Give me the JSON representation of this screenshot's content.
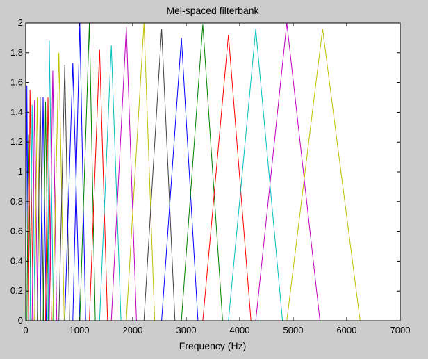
{
  "chart_data": {
    "type": "line",
    "title": "Mel-spaced filterbank",
    "xlabel": "Frequency (Hz)",
    "ylabel": "",
    "xlim": [
      0,
      7000
    ],
    "ylim": [
      0,
      2
    ],
    "xticks": [
      "0",
      "1000",
      "2000",
      "3000",
      "4000",
      "5000",
      "6000",
      "7000"
    ],
    "yticks": [
      "0",
      "0.2",
      "0.4",
      "0.6",
      "0.8",
      "1",
      "1.2",
      "1.4",
      "1.6",
      "1.8",
      "2"
    ],
    "grid": false,
    "legend": "none",
    "series": [
      {
        "color": "#0000ff",
        "points": [
          [
            0,
            0
          ],
          [
            22,
            1.58
          ],
          [
            50,
            0
          ]
        ]
      },
      {
        "color": "#008000",
        "points": [
          [
            22,
            0
          ],
          [
            50,
            1.25
          ],
          [
            100,
            0
          ]
        ]
      },
      {
        "color": "#ff0000",
        "points": [
          [
            50,
            0
          ],
          [
            80,
            1.55
          ],
          [
            140,
            0
          ]
        ]
      },
      {
        "color": "#00bfbf",
        "points": [
          [
            80,
            0
          ],
          [
            120,
            1.45
          ],
          [
            175,
            0
          ]
        ]
      },
      {
        "color": "#bf00bf",
        "points": [
          [
            120,
            0
          ],
          [
            165,
            1.48
          ],
          [
            225,
            0
          ]
        ]
      },
      {
        "color": "#bfbf00",
        "points": [
          [
            165,
            0
          ],
          [
            215,
            1.5
          ],
          [
            280,
            0
          ]
        ]
      },
      {
        "color": "#404040",
        "points": [
          [
            215,
            0
          ],
          [
            270,
            1.5
          ],
          [
            335,
            0
          ]
        ]
      },
      {
        "color": "#0000ff",
        "points": [
          [
            270,
            0
          ],
          [
            325,
            1.5
          ],
          [
            385,
            0
          ]
        ]
      },
      {
        "color": "#008000",
        "points": [
          [
            325,
            0
          ],
          [
            370,
            1.47
          ],
          [
            425,
            0
          ]
        ]
      },
      {
        "color": "#ff0000",
        "points": [
          [
            370,
            0
          ],
          [
            415,
            1.5
          ],
          [
            480,
            0
          ]
        ]
      },
      {
        "color": "#00bfbf",
        "points": [
          [
            415,
            0
          ],
          [
            440,
            1.88
          ],
          [
            520,
            0
          ]
        ]
      },
      {
        "color": "#bf00bf",
        "points": [
          [
            440,
            0
          ],
          [
            505,
            1.68
          ],
          [
            580,
            0
          ]
        ]
      },
      {
        "color": "#bfbf00",
        "points": [
          [
            505,
            0
          ],
          [
            620,
            1.8
          ],
          [
            720,
            0
          ]
        ]
      },
      {
        "color": "#404040",
        "points": [
          [
            620,
            0
          ],
          [
            730,
            1.72
          ],
          [
            820,
            0
          ]
        ]
      },
      {
        "color": "#0000ff",
        "points": [
          [
            730,
            0
          ],
          [
            880,
            1.73
          ],
          [
            1010,
            0
          ]
        ]
      },
      {
        "color": "#0000ff",
        "points": [
          [
            880,
            0
          ],
          [
            1010,
            2.0
          ],
          [
            1120,
            0
          ]
        ]
      },
      {
        "color": "#008000",
        "points": [
          [
            1010,
            0
          ],
          [
            1190,
            2.0
          ],
          [
            1300,
            0
          ]
        ]
      },
      {
        "color": "#ff0000",
        "points": [
          [
            1190,
            0
          ],
          [
            1380,
            1.82
          ],
          [
            1530,
            0
          ]
        ]
      },
      {
        "color": "#00bfbf",
        "points": [
          [
            1380,
            0
          ],
          [
            1600,
            1.85
          ],
          [
            1780,
            0
          ]
        ]
      },
      {
        "color": "#bf00bf",
        "points": [
          [
            1600,
            0
          ],
          [
            1880,
            1.97
          ],
          [
            2070,
            0
          ]
        ]
      },
      {
        "color": "#bfbf00",
        "points": [
          [
            1880,
            0
          ],
          [
            2210,
            2.0
          ],
          [
            2410,
            0
          ]
        ]
      },
      {
        "color": "#404040",
        "points": [
          [
            2210,
            0
          ],
          [
            2540,
            1.96
          ],
          [
            2790,
            0
          ]
        ]
      },
      {
        "color": "#0000ff",
        "points": [
          [
            2540,
            0
          ],
          [
            2910,
            1.9
          ],
          [
            3220,
            0
          ]
        ]
      },
      {
        "color": "#008000",
        "points": [
          [
            2910,
            0
          ],
          [
            3310,
            1.99
          ],
          [
            3680,
            0
          ]
        ]
      },
      {
        "color": "#ff0000",
        "points": [
          [
            3310,
            0
          ],
          [
            3790,
            1.92
          ],
          [
            4210,
            0
          ]
        ]
      },
      {
        "color": "#00bfbf",
        "points": [
          [
            3790,
            0
          ],
          [
            4300,
            1.96
          ],
          [
            4800,
            0
          ]
        ]
      },
      {
        "color": "#bf00bf",
        "points": [
          [
            4300,
            0
          ],
          [
            4880,
            2.0
          ],
          [
            5500,
            0
          ]
        ]
      },
      {
        "color": "#bfbf00",
        "points": [
          [
            4880,
            0
          ],
          [
            5550,
            1.96
          ],
          [
            6250,
            0
          ]
        ]
      }
    ]
  }
}
